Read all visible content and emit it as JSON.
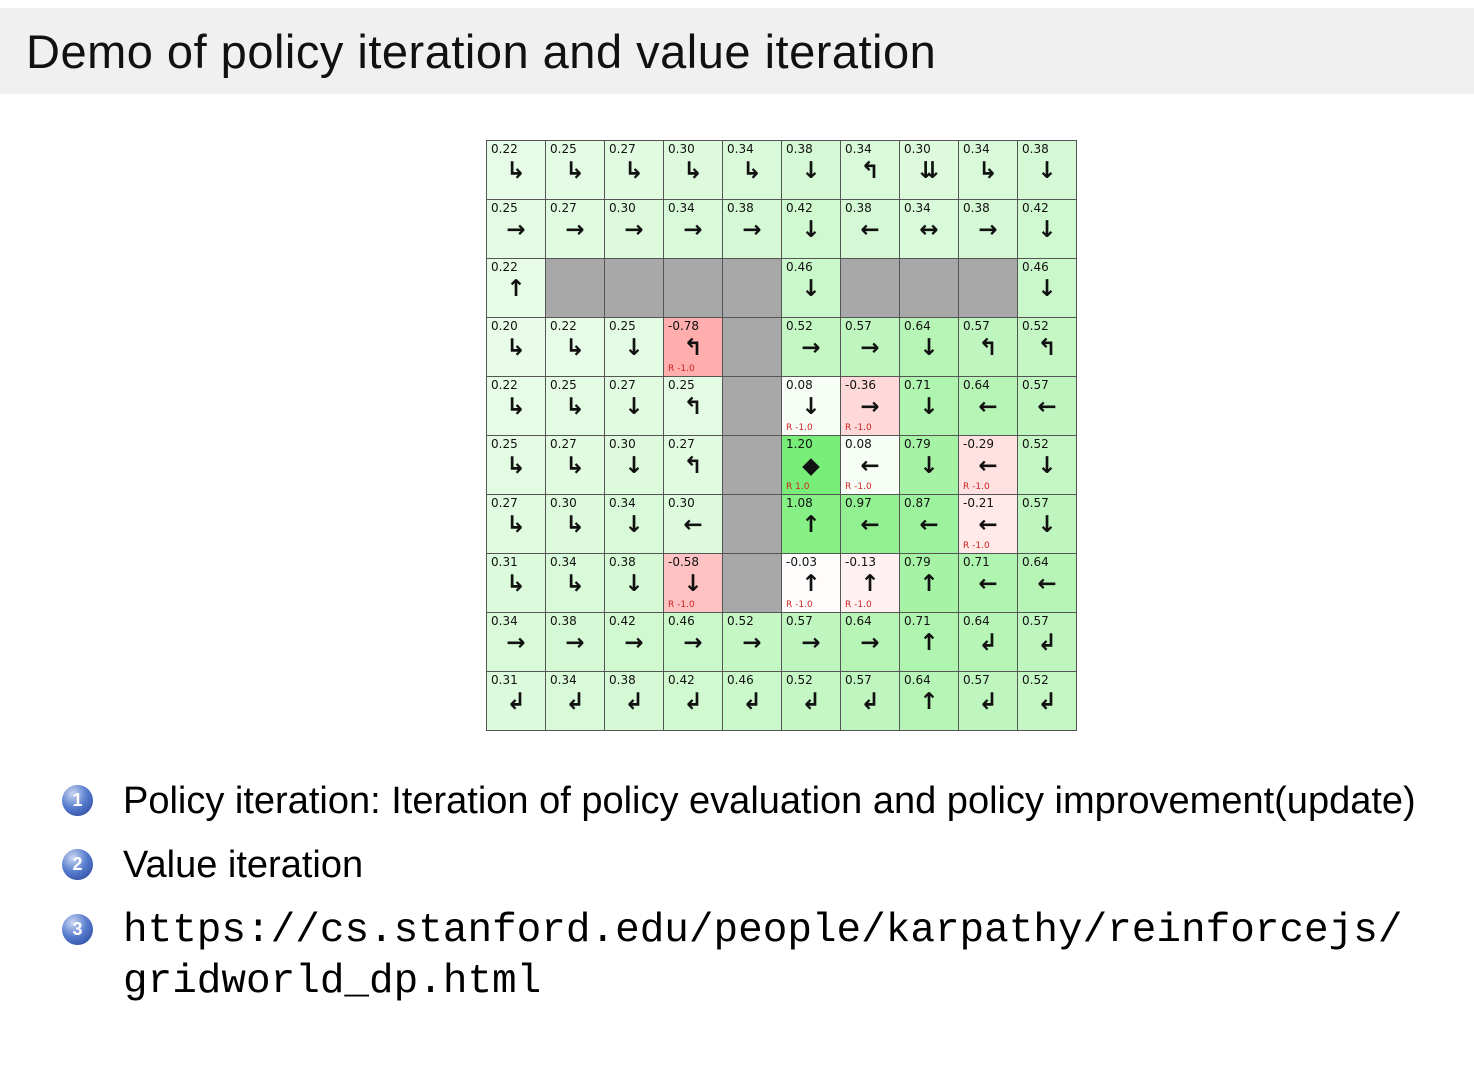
{
  "title": "Demo of policy iteration and value iteration",
  "bullets": [
    {
      "num": "1",
      "text": "Policy iteration: Iteration of policy evaluation and policy improvement(update)",
      "mono": false
    },
    {
      "num": "2",
      "text": "Value iteration",
      "mono": false
    },
    {
      "num": "3",
      "text": "https://cs.stanford.edu/people/karpathy/reinforcejs/gridworld_dp.html",
      "mono": true
    }
  ],
  "grid": {
    "rows": 10,
    "cols": 10,
    "colors": {
      "wall": "#a8a8a8",
      "positive_max": "#78ed78",
      "negative_max": "#ff9696",
      "reward_text": "#cc2222",
      "badge_blue": "#1e3f95",
      "titlebar_bg": "#f0f0f0"
    },
    "cells": [
      [
        {
          "v": "0.22",
          "a": "↳"
        },
        {
          "v": "0.25",
          "a": "↳"
        },
        {
          "v": "0.27",
          "a": "↳"
        },
        {
          "v": "0.30",
          "a": "↳"
        },
        {
          "v": "0.34",
          "a": "↳"
        },
        {
          "v": "0.38",
          "a": "↓"
        },
        {
          "v": "0.34",
          "a": "↰"
        },
        {
          "v": "0.30",
          "a": "⇊"
        },
        {
          "v": "0.34",
          "a": "↳"
        },
        {
          "v": "0.38",
          "a": "↓"
        }
      ],
      [
        {
          "v": "0.25",
          "a": "→"
        },
        {
          "v": "0.27",
          "a": "→"
        },
        {
          "v": "0.30",
          "a": "→"
        },
        {
          "v": "0.34",
          "a": "→"
        },
        {
          "v": "0.38",
          "a": "→"
        },
        {
          "v": "0.42",
          "a": "↓"
        },
        {
          "v": "0.38",
          "a": "←"
        },
        {
          "v": "0.34",
          "a": "↔"
        },
        {
          "v": "0.38",
          "a": "→"
        },
        {
          "v": "0.42",
          "a": "↓"
        }
      ],
      [
        {
          "v": "0.22",
          "a": "↑"
        },
        null,
        null,
        null,
        null,
        {
          "v": "0.46",
          "a": "↓"
        },
        null,
        null,
        null,
        {
          "v": "0.46",
          "a": "↓"
        }
      ],
      [
        {
          "v": "0.20",
          "a": "↳"
        },
        {
          "v": "0.22",
          "a": "↳"
        },
        {
          "v": "0.25",
          "a": "↓"
        },
        {
          "v": "-0.78",
          "a": "↰",
          "r": "R -1.0"
        },
        null,
        {
          "v": "0.52",
          "a": "→"
        },
        {
          "v": "0.57",
          "a": "→"
        },
        {
          "v": "0.64",
          "a": "↓"
        },
        {
          "v": "0.57",
          "a": "↰"
        },
        {
          "v": "0.52",
          "a": "↰"
        }
      ],
      [
        {
          "v": "0.22",
          "a": "↳"
        },
        {
          "v": "0.25",
          "a": "↳"
        },
        {
          "v": "0.27",
          "a": "↓"
        },
        {
          "v": "0.25",
          "a": "↰"
        },
        null,
        {
          "v": "0.08",
          "a": "↓",
          "r": "R -1.0"
        },
        {
          "v": "-0.36",
          "a": "→",
          "r": "R -1.0"
        },
        {
          "v": "0.71",
          "a": "↓"
        },
        {
          "v": "0.64",
          "a": "←"
        },
        {
          "v": "0.57",
          "a": "←"
        }
      ],
      [
        {
          "v": "0.25",
          "a": "↳"
        },
        {
          "v": "0.27",
          "a": "↳"
        },
        {
          "v": "0.30",
          "a": "↓"
        },
        {
          "v": "0.27",
          "a": "↰"
        },
        null,
        {
          "v": "1.20",
          "a": "◆",
          "r": "R 1.0"
        },
        {
          "v": "0.08",
          "a": "←",
          "r": "R -1.0"
        },
        {
          "v": "0.79",
          "a": "↓"
        },
        {
          "v": "-0.29",
          "a": "←",
          "r": "R -1.0"
        },
        {
          "v": "0.52",
          "a": "↓"
        }
      ],
      [
        {
          "v": "0.27",
          "a": "↳"
        },
        {
          "v": "0.30",
          "a": "↳"
        },
        {
          "v": "0.34",
          "a": "↓"
        },
        {
          "v": "0.30",
          "a": "←"
        },
        null,
        {
          "v": "1.08",
          "a": "↑"
        },
        {
          "v": "0.97",
          "a": "←"
        },
        {
          "v": "0.87",
          "a": "←"
        },
        {
          "v": "-0.21",
          "a": "←",
          "r": "R -1.0"
        },
        {
          "v": "0.57",
          "a": "↓"
        }
      ],
      [
        {
          "v": "0.31",
          "a": "↳"
        },
        {
          "v": "0.34",
          "a": "↳"
        },
        {
          "v": "0.38",
          "a": "↓"
        },
        {
          "v": "-0.58",
          "a": "↓",
          "r": "R -1.0"
        },
        null,
        {
          "v": "-0.03",
          "a": "↑",
          "r": "R -1.0"
        },
        {
          "v": "-0.13",
          "a": "↑",
          "r": "R -1.0"
        },
        {
          "v": "0.79",
          "a": "↑"
        },
        {
          "v": "0.71",
          "a": "←"
        },
        {
          "v": "0.64",
          "a": "←"
        }
      ],
      [
        {
          "v": "0.34",
          "a": "→"
        },
        {
          "v": "0.38",
          "a": "→"
        },
        {
          "v": "0.42",
          "a": "→"
        },
        {
          "v": "0.46",
          "a": "→"
        },
        {
          "v": "0.52",
          "a": "→"
        },
        {
          "v": "0.57",
          "a": "→"
        },
        {
          "v": "0.64",
          "a": "→"
        },
        {
          "v": "0.71",
          "a": "↑"
        },
        {
          "v": "0.64",
          "a": "↲"
        },
        {
          "v": "0.57",
          "a": "↲"
        }
      ],
      [
        {
          "v": "0.31",
          "a": "↲"
        },
        {
          "v": "0.34",
          "a": "↲"
        },
        {
          "v": "0.38",
          "a": "↲"
        },
        {
          "v": "0.42",
          "a": "↲"
        },
        {
          "v": "0.46",
          "a": "↲"
        },
        {
          "v": "0.52",
          "a": "↲"
        },
        {
          "v": "0.57",
          "a": "↲"
        },
        {
          "v": "0.64",
          "a": "↑"
        },
        {
          "v": "0.57",
          "a": "↲"
        },
        {
          "v": "0.52",
          "a": "↲"
        }
      ]
    ]
  }
}
